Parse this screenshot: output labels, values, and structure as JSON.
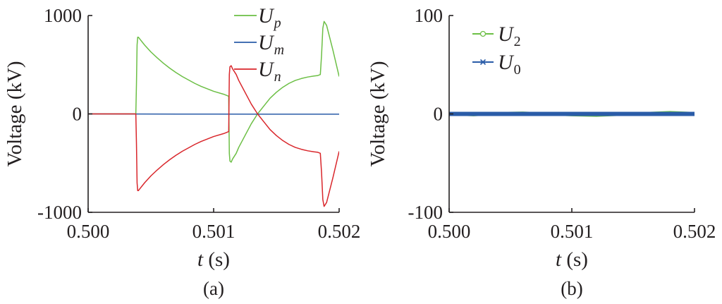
{
  "colors": {
    "green": "#6cbf45",
    "blue": "#2a5ca8",
    "red": "#d9262b",
    "axis": "#231f20"
  },
  "chart_data": [
    {
      "type": "line",
      "panel_label": "(a)",
      "xlabel_var": "t",
      "xlabel_unit": " (s)",
      "ylabel": "Voltage (kV)",
      "xlim": [
        0.5,
        0.502
      ],
      "ylim": [
        -1000,
        1000
      ],
      "xticks": [
        0.5,
        0.501,
        0.502
      ],
      "xtick_labels": [
        "0.500",
        "0.501",
        "0.502"
      ],
      "yticks": [
        -1000,
        0,
        1000
      ],
      "ytick_labels": [
        "-1000",
        "0",
        "1000"
      ],
      "grid": false,
      "legend_position": "top-right",
      "series": [
        {
          "name": "U_p",
          "name_main": "U",
          "name_sub": "p",
          "color": "#6cbf45",
          "x": [
            0.5,
            0.50038,
            0.500385,
            0.50039,
            0.500395,
            0.5004,
            0.50045,
            0.5005,
            0.50055,
            0.5006,
            0.50065,
            0.5007,
            0.50075,
            0.5008,
            0.50085,
            0.5009,
            0.50095,
            0.501,
            0.50108,
            0.50112,
            0.501125,
            0.50113,
            0.50114,
            0.50115,
            0.50118,
            0.5012,
            0.50125,
            0.5013,
            0.50135,
            0.5014,
            0.50145,
            0.5015,
            0.50155,
            0.5016,
            0.50165,
            0.5017,
            0.50175,
            0.5018,
            0.50183,
            0.50185,
            0.50186,
            0.50187,
            0.50188,
            0.5019,
            0.50195,
            0.502
          ],
          "y": [
            0,
            0,
            300,
            700,
            780,
            780,
            700,
            630,
            570,
            515,
            465,
            420,
            380,
            345,
            310,
            280,
            255,
            230,
            200,
            180,
            -400,
            -480,
            -490,
            -460,
            -400,
            -340,
            -220,
            -100,
            0,
            80,
            160,
            220,
            270,
            310,
            340,
            360,
            375,
            385,
            390,
            400,
            600,
            870,
            940,
            900,
            650,
            380
          ]
        },
        {
          "name": "U_m",
          "name_main": "U",
          "name_sub": "m",
          "color": "#2a5ca8",
          "x": [
            0.5,
            0.501,
            0.502
          ],
          "y": [
            0,
            -2,
            -3
          ]
        },
        {
          "name": "U_n",
          "name_main": "U",
          "name_sub": "n",
          "color": "#d9262b",
          "x": [
            0.5,
            0.50038,
            0.500385,
            0.50039,
            0.500395,
            0.5004,
            0.50045,
            0.5005,
            0.50055,
            0.5006,
            0.50065,
            0.5007,
            0.50075,
            0.5008,
            0.50085,
            0.5009,
            0.50095,
            0.501,
            0.50108,
            0.50112,
            0.501125,
            0.50113,
            0.50114,
            0.50115,
            0.50118,
            0.5012,
            0.50125,
            0.5013,
            0.50135,
            0.5014,
            0.50145,
            0.5015,
            0.50155,
            0.5016,
            0.50165,
            0.5017,
            0.50175,
            0.5018,
            0.50183,
            0.50185,
            0.50186,
            0.50187,
            0.50188,
            0.5019,
            0.50195,
            0.502
          ],
          "y": [
            0,
            0,
            -300,
            -700,
            -780,
            -780,
            -700,
            -630,
            -570,
            -515,
            -465,
            -420,
            -380,
            -345,
            -310,
            -280,
            -255,
            -230,
            -200,
            -180,
            400,
            480,
            490,
            460,
            400,
            340,
            220,
            100,
            0,
            -80,
            -160,
            -220,
            -270,
            -310,
            -340,
            -360,
            -375,
            -385,
            -390,
            -400,
            -600,
            -870,
            -940,
            -900,
            -650,
            -380
          ]
        }
      ]
    },
    {
      "type": "line",
      "panel_label": "(b)",
      "xlabel_var": "t",
      "xlabel_unit": " (s)",
      "ylabel": "Voltage (kV)",
      "xlim": [
        0.5,
        0.502
      ],
      "ylim": [
        -100,
        100
      ],
      "xticks": [
        0.5,
        0.501,
        0.502
      ],
      "xtick_labels": [
        "0.500",
        "0.501",
        "0.502"
      ],
      "yticks": [
        -100,
        0,
        100
      ],
      "ytick_labels": [
        "-100",
        "0",
        "100"
      ],
      "grid": false,
      "legend_position": "top-left",
      "series": [
        {
          "name": "U_2",
          "name_main": "U",
          "name_sub": "2",
          "color": "#6cbf45",
          "marker": "circle",
          "x": [
            0.5,
            0.5002,
            0.5004,
            0.5006,
            0.5008,
            0.501,
            0.5012,
            0.5014,
            0.5016,
            0.5018,
            0.502
          ],
          "y": [
            0,
            -1,
            0.5,
            1,
            0,
            -1,
            -1.5,
            -0.5,
            0.5,
            1.5,
            0.5
          ]
        },
        {
          "name": "U_0",
          "name_main": "U",
          "name_sub": "0",
          "color": "#2a5ca8",
          "marker": "x",
          "x": [
            0.5,
            0.5002,
            0.5004,
            0.5006,
            0.5008,
            0.501,
            0.5012,
            0.5014,
            0.5016,
            0.5018,
            0.502
          ],
          "y": [
            0,
            0,
            0,
            0,
            0,
            0,
            0,
            0,
            0,
            0,
            0
          ]
        }
      ]
    }
  ]
}
